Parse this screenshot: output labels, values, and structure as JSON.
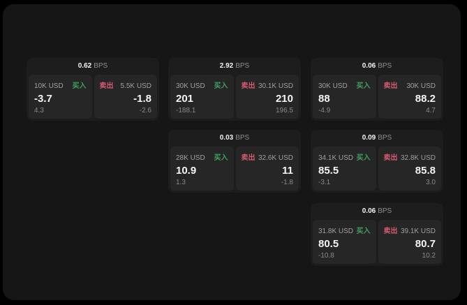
{
  "labels": {
    "bps": "BPS",
    "buy": "买入",
    "sell": "卖出"
  },
  "colors": {
    "background": "#000000",
    "window": "#161616",
    "card": "#1d1d1d",
    "pane": "#262626",
    "buy_green": "#3fa060",
    "sell_red": "#d65b72"
  },
  "cards": [
    {
      "bps": "0.62",
      "buy": {
        "amount": "10K USD",
        "value": "-3.7",
        "delta": "4.3"
      },
      "sell": {
        "amount": "5.5K USD",
        "value": "-1.8",
        "delta": "-2.6"
      }
    },
    {
      "bps": "2.92",
      "buy": {
        "amount": "30K USD",
        "value": "201",
        "delta": "-188.1"
      },
      "sell": {
        "amount": "30.1K USD",
        "value": "210",
        "delta": "196.5"
      }
    },
    {
      "bps": "0.06",
      "buy": {
        "amount": "30K USD",
        "value": "88",
        "delta": "-4.9"
      },
      "sell": {
        "amount": "30K USD",
        "value": "88.2",
        "delta": "4.7"
      }
    },
    {
      "bps": "0.03",
      "buy": {
        "amount": "28K USD",
        "value": "10.9",
        "delta": "1.3"
      },
      "sell": {
        "amount": "32.6K USD",
        "value": "11",
        "delta": "-1.8"
      }
    },
    {
      "bps": "0.09",
      "buy": {
        "amount": "34.1K USD",
        "value": "85.5",
        "delta": "-3.1"
      },
      "sell": {
        "amount": "32.8K USD",
        "value": "85.8",
        "delta": "3.0"
      }
    },
    {
      "bps": "0.06",
      "buy": {
        "amount": "31.8K USD",
        "value": "80.5",
        "delta": "-10.8"
      },
      "sell": {
        "amount": "39.1K USD",
        "value": "80.7",
        "delta": "10.2"
      }
    }
  ]
}
